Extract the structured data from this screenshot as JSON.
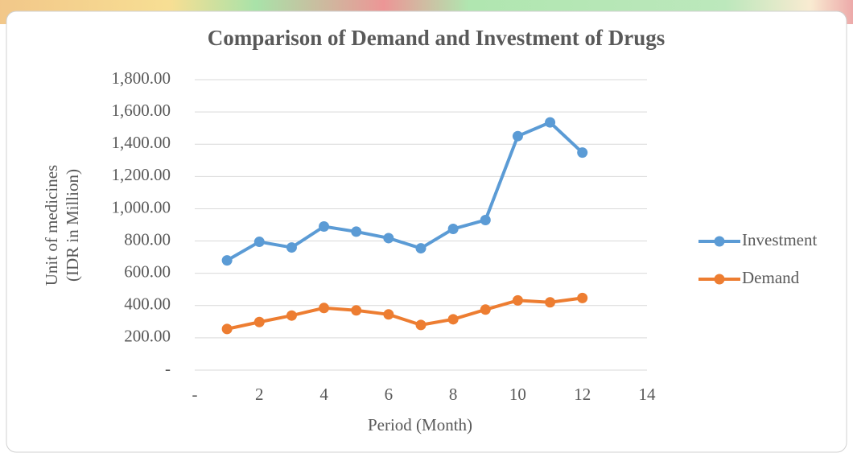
{
  "chart_data": {
    "type": "line",
    "title": "Comparison of Demand and Investment of Drugs",
    "xlabel": "Period (Month)",
    "ylabel": [
      "Unit of medicines",
      "(IDR in Million)"
    ],
    "x": [
      1,
      2,
      3,
      4,
      5,
      6,
      7,
      8,
      9,
      10,
      11,
      12
    ],
    "series": [
      {
        "name": "Investment",
        "color": "#5b9bd5",
        "values": [
          680,
          795,
          760,
          890,
          858,
          818,
          755,
          875,
          930,
          1450,
          1535,
          1348
        ]
      },
      {
        "name": "Demand",
        "color": "#ed7d31",
        "values": [
          255,
          298,
          338,
          385,
          370,
          345,
          280,
          315,
          375,
          432,
          420,
          447
        ]
      }
    ],
    "xlim": [
      0,
      14
    ],
    "xticks": [
      {
        "value": 0,
        "label": "-"
      },
      2,
      4,
      6,
      8,
      10,
      12,
      14
    ],
    "ylim": [
      0,
      1800
    ],
    "yticks": [
      {
        "value": 0,
        "label": "-"
      },
      {
        "value": 200,
        "label": "200.00"
      },
      {
        "value": 400,
        "label": "400.00"
      },
      {
        "value": 600,
        "label": "600.00"
      },
      {
        "value": 800,
        "label": "800.00"
      },
      {
        "value": 1000,
        "label": "1,000.00"
      },
      {
        "value": 1200,
        "label": "1,200.00"
      },
      {
        "value": 1400,
        "label": "1,400.00"
      },
      {
        "value": 1600,
        "label": "1,600.00"
      },
      {
        "value": 1800,
        "label": "1,800.00"
      }
    ],
    "grid": true,
    "legend": "right"
  }
}
